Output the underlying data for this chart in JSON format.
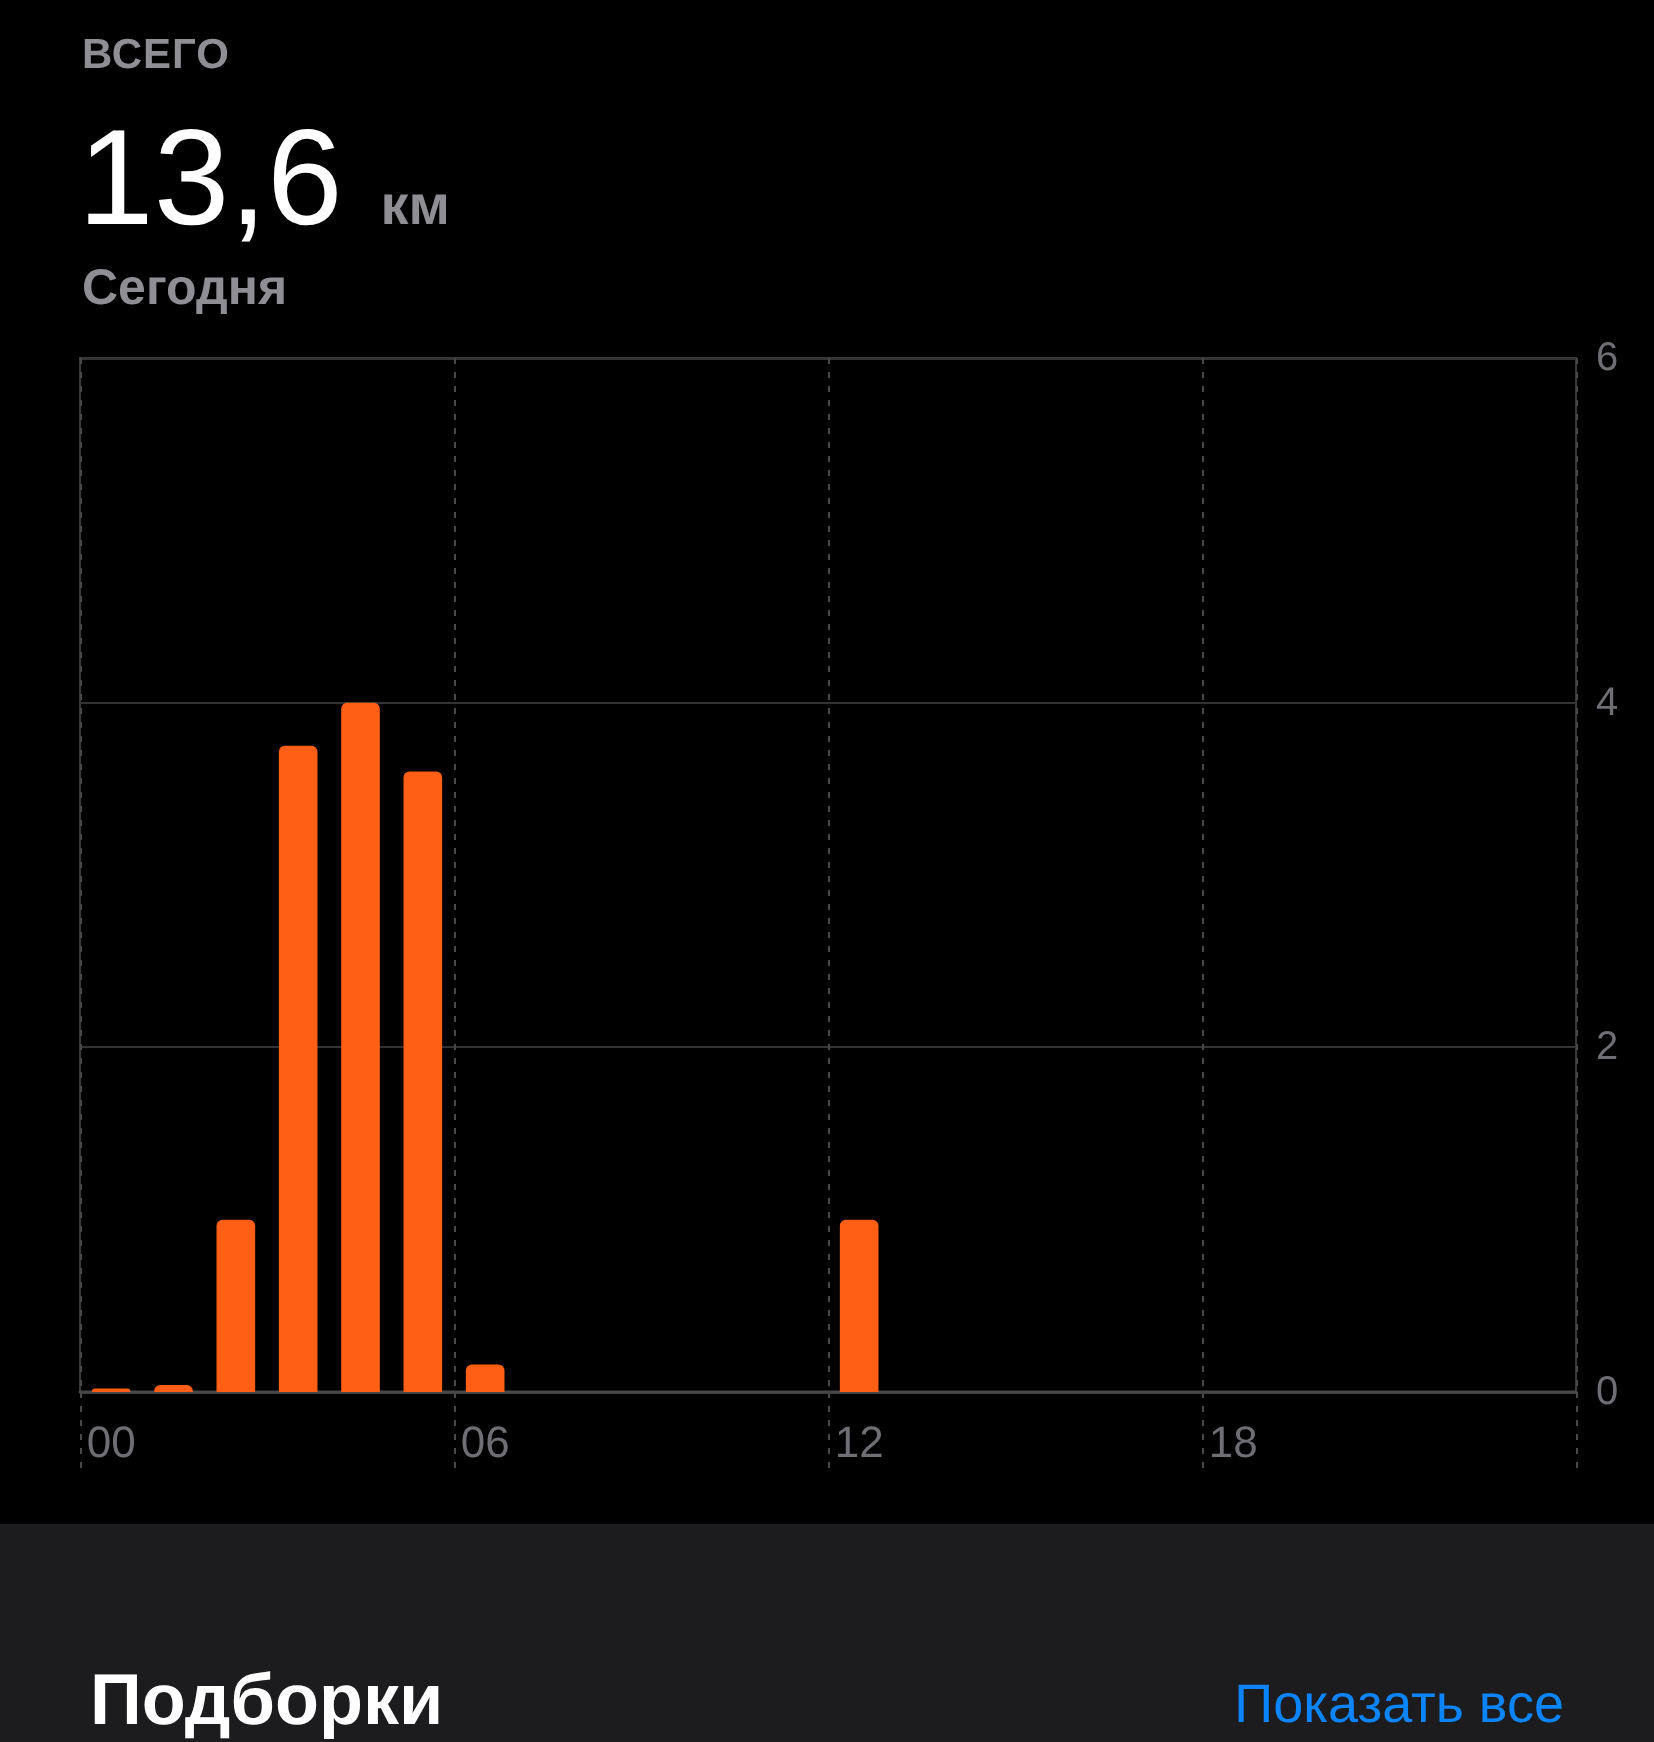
{
  "chart_data": {
    "type": "bar",
    "title": "ВСЕГО",
    "subtitle": "Сегодня",
    "annotations": [
      "13,6 км",
      "Подборки",
      "Показать все"
    ],
    "categories": [
      "00",
      null,
      null,
      null,
      null,
      null,
      "06",
      null,
      null,
      null,
      null,
      null,
      "12",
      null,
      null,
      null,
      null,
      null,
      "18",
      null,
      null,
      null,
      null,
      null
    ],
    "values": [
      0.02,
      0.04,
      1.0,
      3.75,
      4.0,
      3.6,
      0.16,
      null,
      null,
      null,
      null,
      null,
      1.0,
      null,
      null,
      null,
      null,
      null,
      null,
      null,
      null,
      null,
      null,
      null
    ],
    "color": "#ff5f15",
    "ylim": [
      0,
      6
    ],
    "yticks": [
      0,
      2,
      4,
      6
    ],
    "grid": true
  }
}
